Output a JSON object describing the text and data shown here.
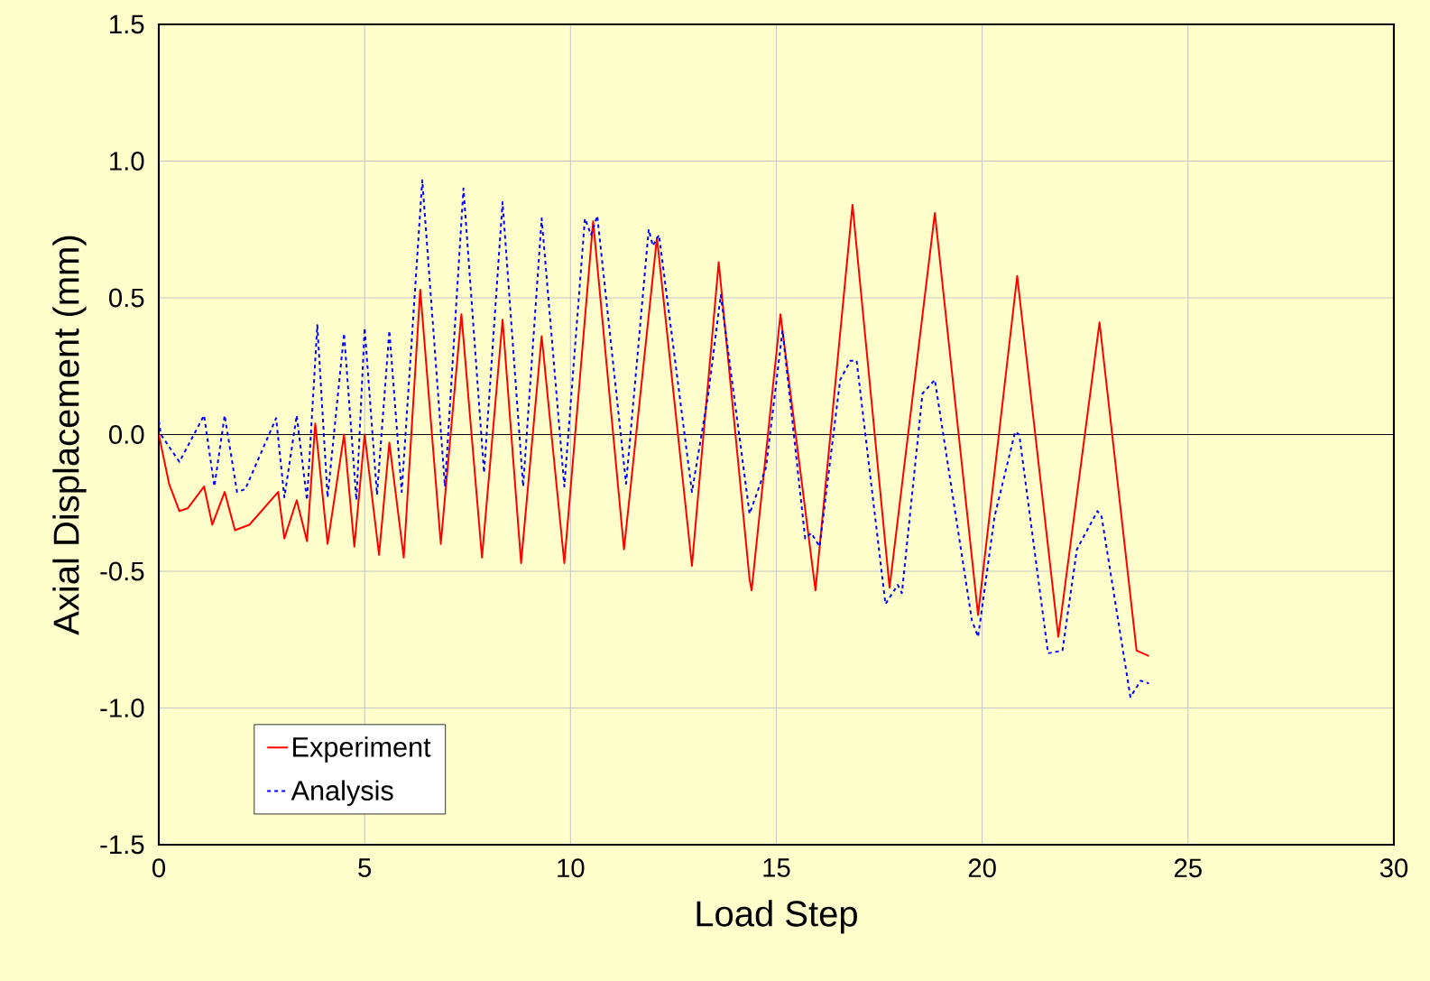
{
  "chart_data": {
    "type": "line",
    "xlabel": "Load Step",
    "ylabel": "Axial Displacement (mm)",
    "xlim": [
      0,
      30
    ],
    "ylim": [
      -1.5,
      1.5
    ],
    "xticks": [
      0,
      5,
      10,
      15,
      20,
      25,
      30
    ],
    "yticks": [
      {
        "value": -1.5,
        "label": "-1.5"
      },
      {
        "value": -1.0,
        "label": "-1.0"
      },
      {
        "value": -0.5,
        "label": "-0.5"
      },
      {
        "value": 0,
        "label": "0.0"
      },
      {
        "value": 0.5,
        "label": "0.5"
      },
      {
        "value": 1.0,
        "label": "1.0"
      },
      {
        "value": 1.5,
        "label": "1.5"
      }
    ],
    "grid": true,
    "legend": "bottom left",
    "marker": "none",
    "ref_lines": [
      {
        "axis": "y",
        "value": 0,
        "color": "#000000"
      }
    ],
    "series": [
      {
        "name": "Experiment",
        "color": "#ff0000",
        "line_style": "solid",
        "x": [
          0,
          0.25,
          0.5,
          0.7,
          1.1,
          1.3,
          1.6,
          1.85,
          2.2,
          2.9,
          3.05,
          3.35,
          3.6,
          3.8,
          4.1,
          4.5,
          4.75,
          5.0,
          5.35,
          5.6,
          5.95,
          6.35,
          6.85,
          7.35,
          7.85,
          8.35,
          8.8,
          9.3,
          9.85,
          10.55,
          11.3,
          12.1,
          12.95,
          13.6,
          14.35,
          14.4,
          15.1,
          15.95,
          16.85,
          17.75,
          18.85,
          19.9,
          20.85,
          21.85,
          22.85,
          23.75,
          24.05
        ],
        "values": [
          0,
          -0.18,
          -0.28,
          -0.27,
          -0.19,
          -0.33,
          -0.21,
          -0.35,
          -0.33,
          -0.21,
          -0.38,
          -0.24,
          -0.39,
          0.04,
          -0.4,
          0.0,
          -0.41,
          0.0,
          -0.44,
          -0.03,
          -0.45,
          0.53,
          -0.4,
          0.44,
          -0.45,
          0.42,
          -0.47,
          0.36,
          -0.47,
          0.78,
          -0.42,
          0.72,
          -0.48,
          0.63,
          -0.53,
          -0.57,
          0.44,
          -0.57,
          0.84,
          -0.56,
          0.81,
          -0.66,
          0.58,
          -0.74,
          0.41,
          -0.79,
          -0.81
        ]
      },
      {
        "name": "Analysis",
        "color": "#0000ff",
        "line_style": "dashed",
        "x": [
          0,
          0.05,
          0.5,
          1.1,
          1.35,
          1.6,
          1.9,
          2.1,
          2.85,
          3.05,
          3.35,
          3.6,
          3.85,
          4.1,
          4.5,
          4.8,
          5.0,
          5.3,
          5.6,
          5.9,
          6.4,
          6.95,
          7.4,
          7.9,
          8.35,
          8.85,
          9.3,
          9.85,
          10.35,
          10.5,
          10.65,
          11.35,
          11.9,
          12.0,
          12.15,
          12.95,
          13.35,
          13.65,
          14.35,
          14.75,
          15.15,
          15.7,
          15.85,
          16.05,
          16.55,
          16.8,
          16.95,
          17.65,
          17.95,
          18.05,
          18.55,
          18.85,
          19.75,
          19.9,
          20.3,
          20.8,
          20.9,
          21.6,
          21.95,
          22.3,
          22.8,
          22.9,
          23.6,
          23.85,
          24.05
        ],
        "values": [
          0.05,
          0.0,
          -0.1,
          0.07,
          -0.19,
          0.07,
          -0.21,
          -0.2,
          0.06,
          -0.23,
          0.07,
          -0.24,
          0.4,
          -0.23,
          0.37,
          -0.24,
          0.39,
          -0.22,
          0.38,
          -0.21,
          0.93,
          -0.19,
          0.9,
          -0.14,
          0.85,
          -0.19,
          0.79,
          -0.19,
          0.79,
          0.73,
          0.8,
          -0.18,
          0.75,
          0.69,
          0.73,
          -0.21,
          0.15,
          0.51,
          -0.29,
          -0.12,
          0.38,
          -0.38,
          -0.36,
          -0.41,
          0.2,
          0.27,
          0.27,
          -0.62,
          -0.55,
          -0.58,
          0.15,
          0.2,
          -0.68,
          -0.74,
          -0.3,
          0.01,
          0.0,
          -0.8,
          -0.79,
          -0.42,
          -0.28,
          -0.3,
          -0.96,
          -0.9,
          -0.91
        ]
      }
    ]
  }
}
